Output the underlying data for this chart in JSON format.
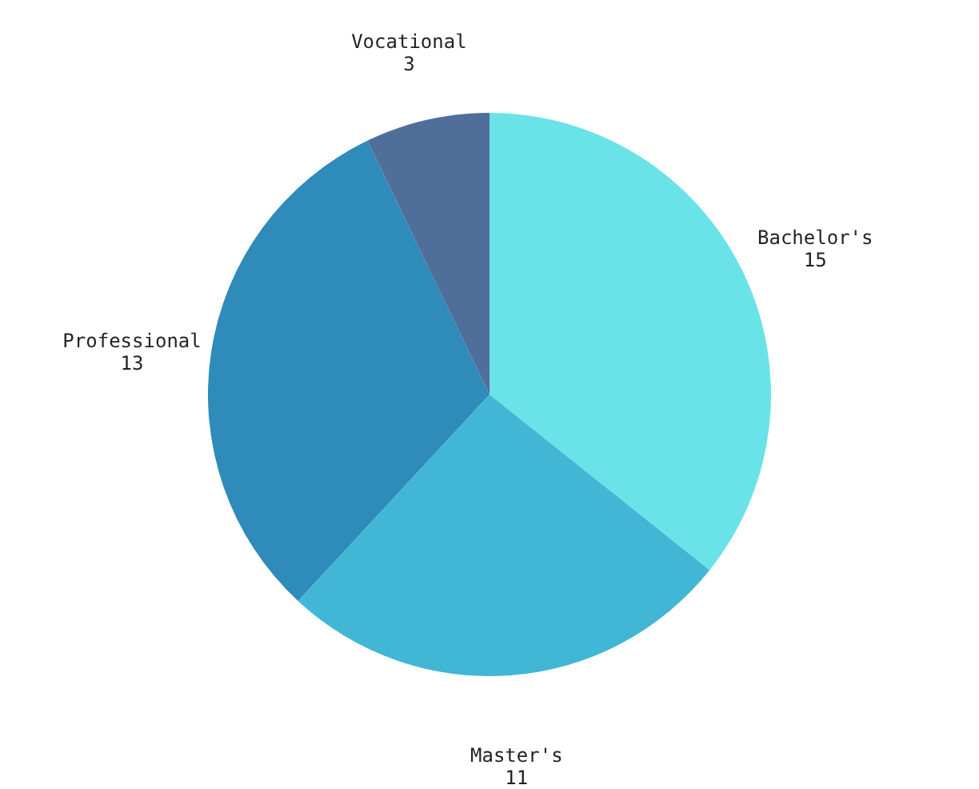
{
  "chart_data": {
    "type": "pie",
    "categories": [
      "Bachelor's",
      "Master's",
      "Professional",
      "Vocational"
    ],
    "values": [
      15,
      11,
      13,
      3
    ],
    "colors": [
      "#6ae3e8",
      "#42b6d5",
      "#2e8bba",
      "#4f6f9a"
    ],
    "data_labels": true
  }
}
